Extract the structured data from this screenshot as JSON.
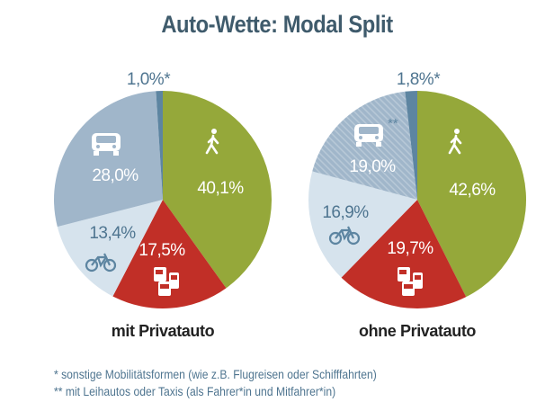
{
  "title": "Auto-Wette: Modal Split",
  "chart_data": [
    {
      "type": "pie",
      "title": "mit Privatauto",
      "slices": [
        {
          "label": "40,1%",
          "value": 40.1,
          "icon": "walking-icon",
          "color": "#95a83a"
        },
        {
          "label": "17,5%",
          "value": 17.5,
          "icon": "public-transport-icon",
          "color": "#c12f27"
        },
        {
          "label": "13,4%",
          "value": 13.4,
          "icon": "bicycle-icon",
          "color": "#d6e3ed"
        },
        {
          "label": "28,0%",
          "value": 28.0,
          "icon": "car-icon",
          "color": "#a0b6ca"
        },
        {
          "label": "1,0%*",
          "value": 1.0,
          "icon": "",
          "color": "#5d85a1"
        }
      ]
    },
    {
      "type": "pie",
      "title": "ohne Privatauto",
      "slices": [
        {
          "label": "42,6%",
          "value": 42.6,
          "icon": "walking-icon",
          "color": "#95a83a"
        },
        {
          "label": "19,7%",
          "value": 19.7,
          "icon": "public-transport-icon",
          "color": "#c12f27"
        },
        {
          "label": "16,9%",
          "value": 16.9,
          "icon": "bicycle-icon",
          "color": "#d6e3ed"
        },
        {
          "label": "19,0%",
          "value": 19.0,
          "icon": "taxi-icon",
          "color": "#a0b6ca",
          "hatched": true,
          "marker": "**"
        },
        {
          "label": "1,8%*",
          "value": 1.8,
          "icon": "",
          "color": "#5d85a1"
        }
      ]
    }
  ],
  "footnotes": [
    "*   sonstige Mobilitätsformen (wie z.B. Flugreisen oder Schifffahrten)",
    "** mit Leihautos oder Taxis (als Fahrer*in und Mitfahrer*in)"
  ]
}
